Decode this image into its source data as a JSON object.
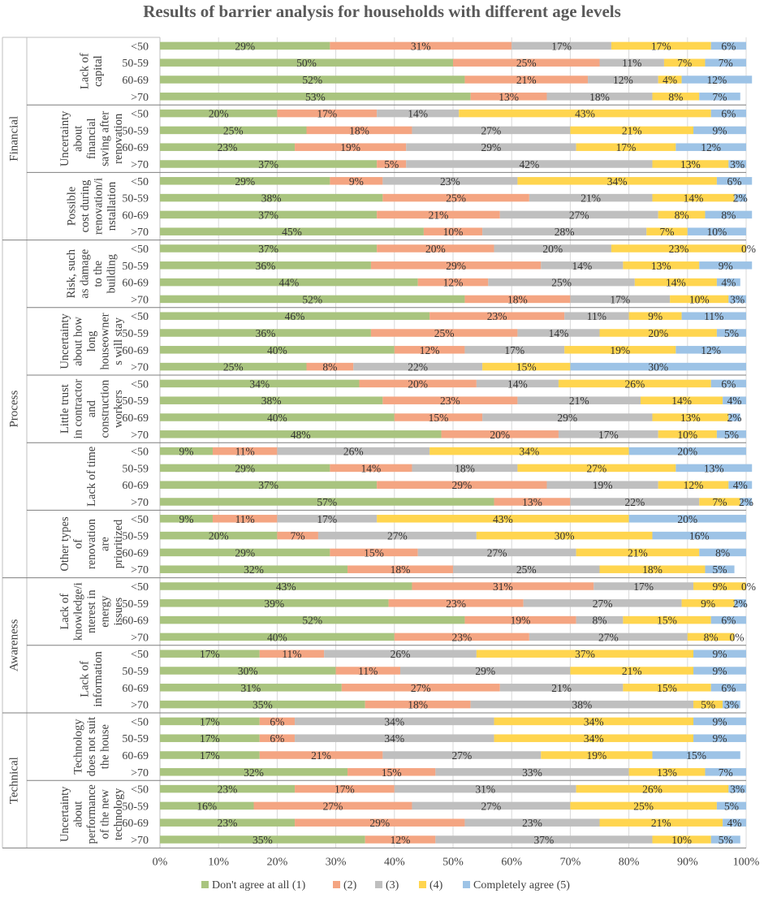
{
  "chart_data": {
    "type": "stacked-bar-horizontal-percent",
    "title": "Results of barrier analysis for households with different age levels",
    "age_levels": [
      "<50",
      "50-59",
      "60-69",
      ">70"
    ],
    "series_names": [
      "Don't agree at all (1)",
      "(2)",
      "(3)",
      "(4)",
      "Completely agree (5)"
    ],
    "series_colors": [
      "#a9c47f",
      "#f4a582",
      "#bfbfbf",
      "#ffd54f",
      "#9dc3e6"
    ],
    "x_ticks": [
      "0%",
      "10%",
      "20%",
      "30%",
      "40%",
      "50%",
      "60%",
      "70%",
      "80%",
      "90%",
      "100%"
    ],
    "xlim": [
      0,
      100
    ],
    "legend_position": "bottom",
    "groups": [
      {
        "name": "Financial",
        "barriers": [
          {
            "label": "Lack of capital",
            "rows": [
              [
                29,
                31,
                17,
                17,
                6
              ],
              [
                50,
                25,
                11,
                7,
                7
              ],
              [
                52,
                21,
                12,
                4,
                12
              ],
              [
                53,
                13,
                18,
                8,
                7
              ]
            ]
          },
          {
            "label": "Uncertainty about financial saving after renovation",
            "rows": [
              [
                20,
                17,
                14,
                43,
                6
              ],
              [
                25,
                18,
                27,
                21,
                9
              ],
              [
                23,
                19,
                29,
                17,
                12
              ],
              [
                37,
                5,
                42,
                13,
                3
              ]
            ]
          },
          {
            "label": "Possible cost during renovation/installation",
            "rows": [
              [
                29,
                9,
                23,
                34,
                6
              ],
              [
                38,
                25,
                21,
                14,
                2
              ],
              [
                37,
                21,
                27,
                8,
                8
              ],
              [
                45,
                10,
                28,
                7,
                10
              ]
            ]
          }
        ]
      },
      {
        "name": "Process",
        "barriers": [
          {
            "label": "Risk, such as damage to the building",
            "rows": [
              [
                37,
                20,
                20,
                23,
                0
              ],
              [
                36,
                29,
                14,
                13,
                9
              ],
              [
                44,
                12,
                25,
                14,
                4
              ],
              [
                52,
                18,
                17,
                10,
                3
              ]
            ]
          },
          {
            "label": "Uncertainty about how long houseowners will stay",
            "rows": [
              [
                46,
                23,
                11,
                9,
                11
              ],
              [
                36,
                25,
                14,
                20,
                5
              ],
              [
                40,
                12,
                17,
                19,
                12
              ],
              [
                25,
                8,
                22,
                15,
                30
              ]
            ]
          },
          {
            "label": "Little trust in contractor and construction workers",
            "rows": [
              [
                34,
                20,
                14,
                26,
                6
              ],
              [
                38,
                23,
                21,
                14,
                4
              ],
              [
                40,
                15,
                29,
                13,
                2
              ],
              [
                48,
                20,
                17,
                10,
                5
              ]
            ]
          },
          {
            "label": "Lack of time",
            "rows": [
              [
                9,
                11,
                26,
                34,
                20
              ],
              [
                29,
                14,
                18,
                27,
                13
              ],
              [
                37,
                29,
                19,
                12,
                4
              ],
              [
                57,
                13,
                22,
                7,
                2
              ]
            ]
          },
          {
            "label": "Other types of renovation are prioritized",
            "rows": [
              [
                9,
                11,
                17,
                43,
                20
              ],
              [
                20,
                7,
                27,
                30,
                16
              ],
              [
                29,
                15,
                27,
                21,
                8
              ],
              [
                32,
                18,
                25,
                18,
                5
              ]
            ]
          }
        ]
      },
      {
        "name": "Awareness",
        "barriers": [
          {
            "label": "Lack of knowledge/interest in energy issues",
            "rows": [
              [
                43,
                31,
                17,
                9,
                0
              ],
              [
                39,
                23,
                27,
                9,
                2
              ],
              [
                52,
                19,
                8,
                15,
                6
              ],
              [
                40,
                23,
                27,
                8,
                0
              ]
            ]
          },
          {
            "label": "Lack of information",
            "rows": [
              [
                17,
                11,
                26,
                37,
                9
              ],
              [
                30,
                11,
                29,
                21,
                9
              ],
              [
                31,
                27,
                21,
                15,
                6
              ],
              [
                35,
                18,
                38,
                5,
                3
              ]
            ]
          }
        ]
      },
      {
        "name": "Technical",
        "barriers": [
          {
            "label": "Technology does not suit the house",
            "rows": [
              [
                17,
                6,
                34,
                34,
                9
              ],
              [
                17,
                6,
                34,
                34,
                9
              ],
              [
                17,
                21,
                27,
                19,
                15
              ],
              [
                32,
                15,
                33,
                13,
                7
              ]
            ]
          },
          {
            "label": "Uncertainty about performance of the new technology",
            "rows": [
              [
                23,
                17,
                31,
                26,
                3
              ],
              [
                16,
                27,
                27,
                25,
                5
              ],
              [
                23,
                29,
                23,
                21,
                4
              ],
              [
                35,
                12,
                37,
                10,
                5
              ]
            ]
          }
        ]
      }
    ]
  },
  "display": {
    "group_labels": [
      "Financial",
      "Process",
      "Awareness",
      "Technical"
    ],
    "barrier_label_lines": [
      [
        "Lack of",
        "capital"
      ],
      [
        "Uncertainty",
        "about",
        "financial",
        "saving after",
        "renovation"
      ],
      [
        "Possible",
        "cost during",
        "renovation/i",
        "nstallation"
      ],
      [
        "Risk, such",
        "as damage",
        "to the",
        "building"
      ],
      [
        "Uncertainty",
        "about how",
        "long",
        "houseowner",
        "s will stay"
      ],
      [
        "Little trust",
        "in contractor",
        "and",
        "construction",
        "workers"
      ],
      [
        "Lack of time"
      ],
      [
        "Other types",
        "of",
        "renovation",
        "are",
        "prioritized"
      ],
      [
        "Lack of",
        "knowledge/i",
        "nterest in",
        "energy",
        "issues"
      ],
      [
        "Lack of",
        "information"
      ],
      [
        "Technology",
        "does not suit",
        "the house"
      ],
      [
        "Uncertainty",
        "about",
        "performance",
        "of the new",
        "technology"
      ]
    ]
  }
}
